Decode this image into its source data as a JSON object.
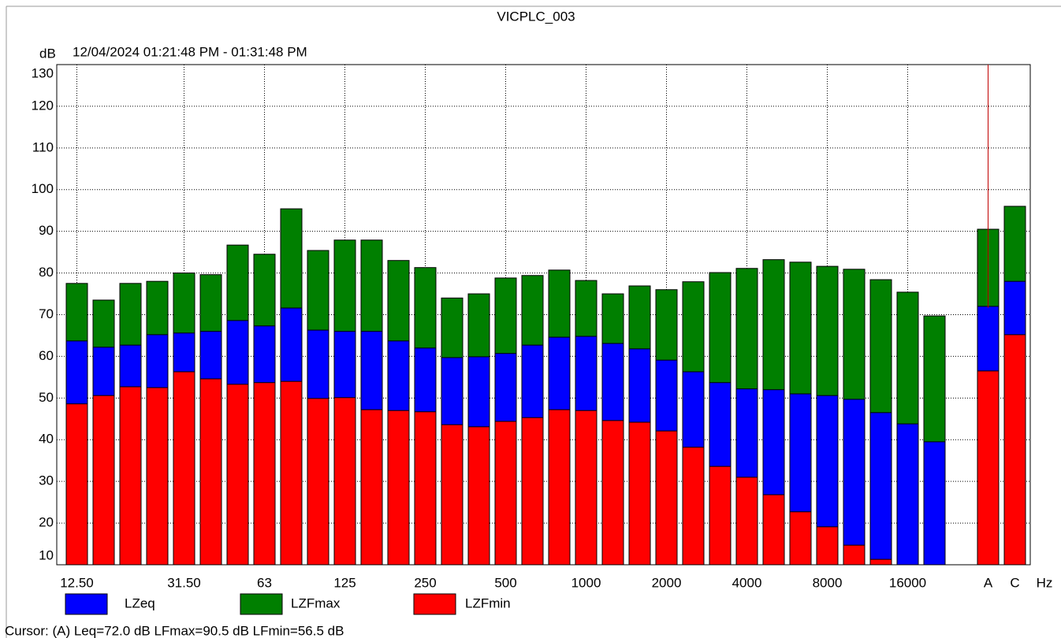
{
  "chart_data": {
    "type": "bar",
    "title": "VICPLC_003",
    "subtitle": "12/04/2024 01:21:48 PM - 01:31:48 PM",
    "y_label": "dB",
    "x_label": "Hz",
    "categories": [
      "12.50",
      null,
      null,
      null,
      "31.50",
      null,
      null,
      "63",
      null,
      null,
      "125",
      null,
      null,
      "250",
      null,
      null,
      "500",
      null,
      null,
      "1000",
      null,
      null,
      "2000",
      null,
      null,
      "4000",
      null,
      null,
      "8000",
      null,
      null,
      "16000",
      null,
      "A",
      "C"
    ],
    "series": [
      {
        "name": "LZeq",
        "color": "#0000ff",
        "values": [
          63.7,
          62.2,
          62.7,
          65.2,
          65.6,
          66.0,
          68.6,
          67.3,
          71.6,
          66.3,
          66.0,
          66.0,
          63.7,
          62.0,
          59.7,
          59.9,
          60.7,
          62.7,
          64.6,
          64.8,
          63.1,
          61.8,
          59.1,
          56.3,
          53.7,
          52.2,
          52.0,
          51.0,
          50.6,
          49.7,
          46.5,
          43.8,
          39.5,
          72.0,
          78.0
        ]
      },
      {
        "name": "LZFmax",
        "color": "#007f00",
        "values": [
          77.5,
          73.5,
          77.5,
          78.0,
          80.0,
          79.6,
          86.7,
          84.5,
          95.4,
          85.4,
          87.9,
          87.9,
          83.0,
          81.3,
          74.0,
          75.0,
          78.8,
          79.4,
          80.7,
          78.2,
          75.0,
          76.9,
          76.0,
          77.9,
          80.1,
          81.1,
          83.2,
          82.6,
          81.6,
          80.9,
          78.4,
          75.4,
          69.7,
          90.5,
          96.0
        ]
      },
      {
        "name": "LZFmin",
        "color": "#ff0000",
        "values": [
          48.6,
          50.6,
          52.7,
          52.5,
          56.3,
          54.6,
          53.3,
          53.7,
          54.0,
          49.9,
          50.1,
          47.2,
          47.0,
          46.7,
          43.6,
          43.1,
          44.4,
          45.3,
          47.2,
          47.0,
          44.6,
          44.2,
          42.1,
          38.2,
          33.6,
          31.0,
          26.8,
          22.7,
          19.1,
          14.7,
          11.3,
          null,
          null,
          56.5,
          65.2
        ]
      }
    ],
    "ylim": [
      10,
      130
    ],
    "yticks": [
      10,
      20,
      30,
      40,
      50,
      60,
      70,
      80,
      90,
      100,
      110,
      120,
      130
    ],
    "grid": true,
    "cursor_text": "Cursor: (A)  Leq=72.0 dB  LFmax=90.5 dB  LFmin=56.5 dB"
  }
}
